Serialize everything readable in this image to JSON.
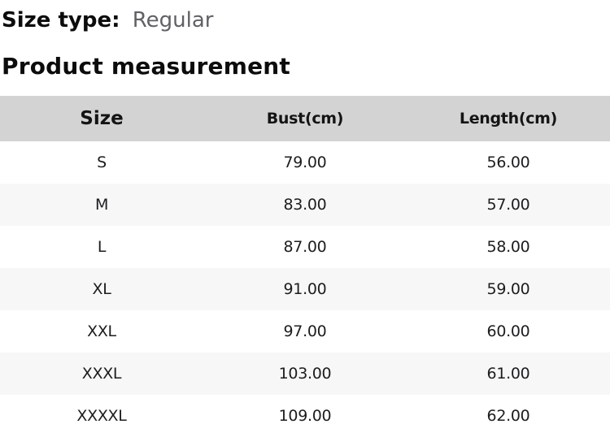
{
  "header": {
    "size_type_label": "Size type:",
    "size_type_value": "Regular",
    "section_title": "Product measurement"
  },
  "table": {
    "columns": [
      "Size",
      "Bust(cm)",
      "Length(cm)"
    ],
    "rows": [
      [
        "S",
        "79.00",
        "56.00"
      ],
      [
        "M",
        "83.00",
        "57.00"
      ],
      [
        "L",
        "87.00",
        "58.00"
      ],
      [
        "XL",
        "91.00",
        "59.00"
      ],
      [
        "XXL",
        "97.00",
        "60.00"
      ],
      [
        "XXXL",
        "103.00",
        "61.00"
      ],
      [
        "XXXXL",
        "109.00",
        "62.00"
      ]
    ]
  },
  "colors": {
    "table_header_bg": "#d3d3d3",
    "row_alt_bg": "#f7f7f7",
    "muted_text": "#616165"
  }
}
